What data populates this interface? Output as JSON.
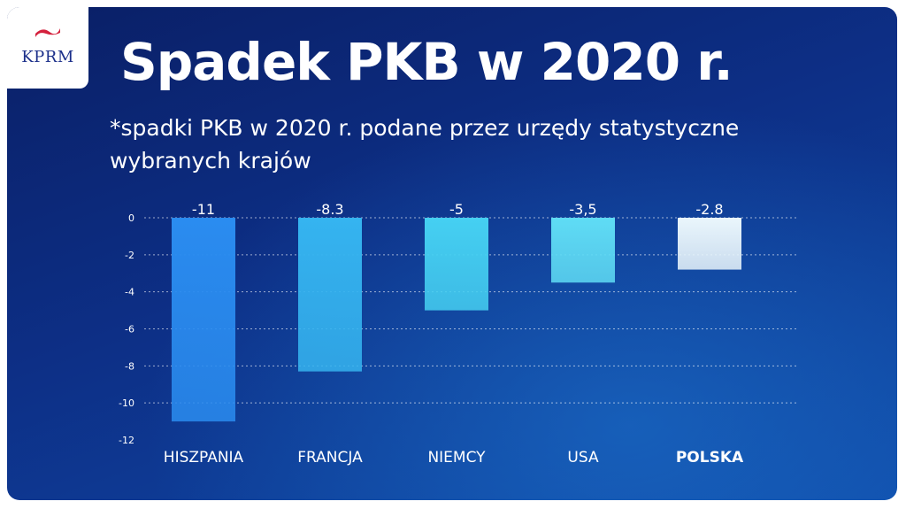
{
  "logo": {
    "text": "KPRM",
    "flag_colors": [
      "#d4213d",
      "#ffffff"
    ]
  },
  "title": "Spadek PKB w 2020 r.",
  "subtitle": "*spadki PKB w 2020 r. podane przez urzędy statystyczne wybranych krajów",
  "colors": {
    "background_dark": "#0a1f66",
    "background_light": "#0f4aa8",
    "text": "#ffffff",
    "bar_gradient": [
      "#2a8cf0",
      "#35b4f0",
      "#45d0f2",
      "#5fdcf5",
      "#eaf6fc"
    ]
  },
  "chart_data": {
    "type": "bar",
    "categories": [
      "HISZPANIA",
      "FRANCJA",
      "NIEMCY",
      "USA",
      "POLSKA"
    ],
    "values": [
      -11,
      -8.3,
      -5,
      -3.5,
      -2.8
    ],
    "data_labels": [
      "-11",
      "-8.3",
      "-5",
      "-3,5",
      "-2.8"
    ],
    "highlight_category": "POLSKA",
    "ylim": [
      -12,
      0
    ],
    "yticks": [
      0,
      -2,
      -4,
      -6,
      -8,
      -10,
      -12
    ],
    "grid": true,
    "grid_style": "dotted",
    "legend": "none",
    "title": "Spadek PKB w 2020 r.",
    "xlabel": "",
    "ylabel": ""
  }
}
